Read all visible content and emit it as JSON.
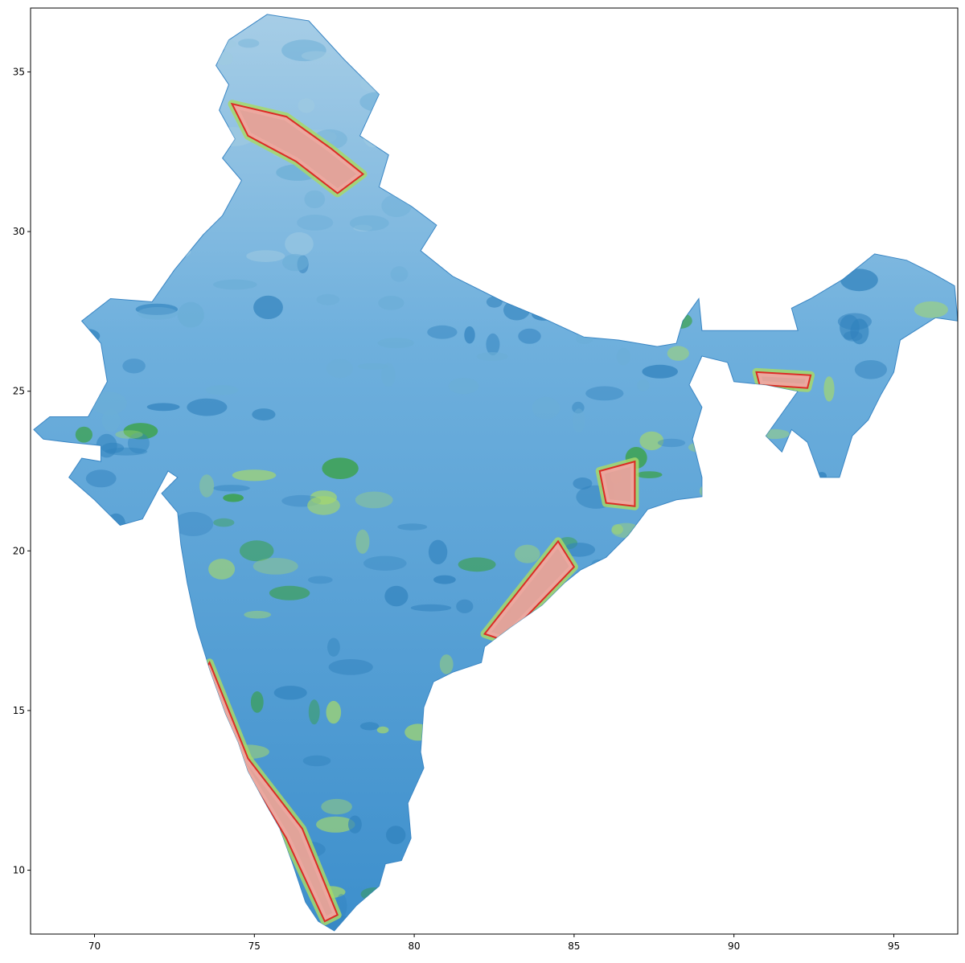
{
  "chart_data": {
    "type": "heatmap",
    "title": "",
    "xlabel": "",
    "ylabel": "",
    "xlim": [
      68,
      97
    ],
    "ylim": [
      8,
      37
    ],
    "x_ticks": [
      70,
      75,
      80,
      85,
      90,
      95
    ],
    "y_ticks": [
      10,
      15,
      20,
      25,
      30,
      35
    ],
    "x_tick_labels": [
      "70",
      "75",
      "80",
      "85",
      "90",
      "95"
    ],
    "y_tick_labels": [
      "10",
      "15",
      "20",
      "25",
      "30",
      "35"
    ],
    "grid": false,
    "legend": "none",
    "colormap": [
      "#9ecae1",
      "#6baed6",
      "#3182bd",
      "#a6d96a",
      "#33a02c",
      "#fc8d59",
      "#e31a1c",
      "#f4a3a3"
    ],
    "colormap_order": "low to high",
    "land_outline": [
      [
        68.1,
        23.8
      ],
      [
        68.6,
        24.2
      ],
      [
        69.8,
        24.2
      ],
      [
        70.4,
        25.3
      ],
      [
        70.2,
        26.5
      ],
      [
        69.6,
        27.2
      ],
      [
        70.5,
        27.9
      ],
      [
        71.8,
        27.8
      ],
      [
        72.5,
        28.8
      ],
      [
        73.4,
        29.9
      ],
      [
        74.0,
        30.5
      ],
      [
        74.6,
        31.6
      ],
      [
        74.0,
        32.3
      ],
      [
        74.4,
        32.9
      ],
      [
        73.9,
        33.8
      ],
      [
        74.2,
        34.6
      ],
      [
        73.8,
        35.2
      ],
      [
        74.2,
        36.0
      ],
      [
        75.4,
        36.8
      ],
      [
        76.7,
        36.6
      ],
      [
        77.8,
        35.4
      ],
      [
        78.9,
        34.3
      ],
      [
        78.3,
        33.0
      ],
      [
        79.2,
        32.4
      ],
      [
        78.9,
        31.4
      ],
      [
        79.9,
        30.8
      ],
      [
        80.7,
        30.2
      ],
      [
        80.2,
        29.4
      ],
      [
        81.2,
        28.6
      ],
      [
        82.8,
        27.8
      ],
      [
        84.0,
        27.3
      ],
      [
        85.3,
        26.7
      ],
      [
        86.4,
        26.6
      ],
      [
        87.6,
        26.4
      ],
      [
        88.2,
        26.5
      ],
      [
        88.4,
        27.2
      ],
      [
        88.9,
        27.9
      ],
      [
        89.0,
        26.9
      ],
      [
        90.4,
        26.9
      ],
      [
        92.0,
        26.9
      ],
      [
        91.8,
        27.6
      ],
      [
        92.4,
        27.9
      ],
      [
        93.4,
        28.5
      ],
      [
        94.4,
        29.3
      ],
      [
        95.4,
        29.1
      ],
      [
        96.2,
        28.7
      ],
      [
        96.9,
        28.3
      ],
      [
        97.0,
        27.2
      ],
      [
        96.3,
        27.3
      ],
      [
        95.2,
        26.6
      ],
      [
        95.0,
        25.6
      ],
      [
        94.6,
        24.9
      ],
      [
        94.2,
        24.1
      ],
      [
        93.7,
        23.6
      ],
      [
        93.3,
        22.3
      ],
      [
        92.7,
        22.3
      ],
      [
        92.3,
        23.4
      ],
      [
        91.8,
        23.8
      ],
      [
        91.5,
        23.1
      ],
      [
        91.0,
        23.6
      ],
      [
        91.5,
        24.3
      ],
      [
        92.0,
        25.0
      ],
      [
        91.0,
        25.2
      ],
      [
        90.0,
        25.3
      ],
      [
        89.8,
        25.9
      ],
      [
        89.0,
        26.1
      ],
      [
        88.6,
        25.2
      ],
      [
        89.0,
        24.5
      ],
      [
        88.7,
        23.5
      ],
      [
        89.0,
        22.3
      ],
      [
        89.0,
        21.7
      ],
      [
        88.2,
        21.6
      ],
      [
        87.3,
        21.3
      ],
      [
        86.7,
        20.5
      ],
      [
        86.0,
        19.8
      ],
      [
        85.2,
        19.4
      ],
      [
        84.7,
        19.0
      ],
      [
        84.0,
        18.3
      ],
      [
        83.0,
        17.6
      ],
      [
        82.2,
        17.0
      ],
      [
        82.1,
        16.5
      ],
      [
        81.2,
        16.2
      ],
      [
        80.6,
        15.9
      ],
      [
        80.3,
        15.1
      ],
      [
        80.2,
        13.7
      ],
      [
        80.3,
        13.2
      ],
      [
        79.8,
        12.1
      ],
      [
        79.9,
        11.0
      ],
      [
        79.6,
        10.3
      ],
      [
        79.1,
        10.2
      ],
      [
        78.9,
        9.5
      ],
      [
        78.2,
        8.9
      ],
      [
        77.5,
        8.1
      ],
      [
        77.0,
        8.4
      ],
      [
        76.6,
        9.0
      ],
      [
        76.2,
        10.2
      ],
      [
        75.8,
        11.3
      ],
      [
        75.4,
        12.0
      ],
      [
        74.8,
        13.1
      ],
      [
        74.5,
        14.0
      ],
      [
        74.1,
        14.9
      ],
      [
        73.6,
        16.3
      ],
      [
        73.2,
        17.6
      ],
      [
        72.9,
        19.0
      ],
      [
        72.7,
        20.2
      ],
      [
        72.6,
        21.2
      ],
      [
        72.1,
        21.8
      ],
      [
        72.6,
        22.3
      ],
      [
        72.3,
        22.5
      ],
      [
        71.5,
        21.0
      ],
      [
        70.8,
        20.8
      ],
      [
        70.0,
        21.6
      ],
      [
        69.2,
        22.3
      ],
      [
        69.6,
        22.9
      ],
      [
        70.2,
        22.8
      ],
      [
        70.2,
        23.3
      ],
      [
        69.2,
        23.4
      ],
      [
        68.4,
        23.5
      ]
    ],
    "high_value_regions": [
      {
        "level": "high",
        "points": [
          [
            74.3,
            34.0
          ],
          [
            76.0,
            33.6
          ],
          [
            77.4,
            32.6
          ],
          [
            78.4,
            31.8
          ],
          [
            77.6,
            31.2
          ],
          [
            76.3,
            32.2
          ],
          [
            74.8,
            33.0
          ]
        ]
      },
      {
        "level": "high",
        "points": [
          [
            90.7,
            25.6
          ],
          [
            92.4,
            25.5
          ],
          [
            92.3,
            25.1
          ],
          [
            90.8,
            25.2
          ]
        ]
      },
      {
        "level": "high",
        "points": [
          [
            82.2,
            17.4
          ],
          [
            84.5,
            20.3
          ],
          [
            85.0,
            19.5
          ],
          [
            82.8,
            17.2
          ]
        ]
      },
      {
        "level": "high",
        "points": [
          [
            85.8,
            22.5
          ],
          [
            86.9,
            22.8
          ],
          [
            86.9,
            21.4
          ],
          [
            86.0,
            21.5
          ]
        ]
      },
      {
        "level": "high",
        "points": [
          [
            73.6,
            16.5
          ],
          [
            74.8,
            13.5
          ],
          [
            76.5,
            11.3
          ],
          [
            77.6,
            8.6
          ],
          [
            77.2,
            8.4
          ],
          [
            76.0,
            11.0
          ],
          [
            74.2,
            14.0
          ],
          [
            73.3,
            16.0
          ]
        ]
      }
    ]
  }
}
